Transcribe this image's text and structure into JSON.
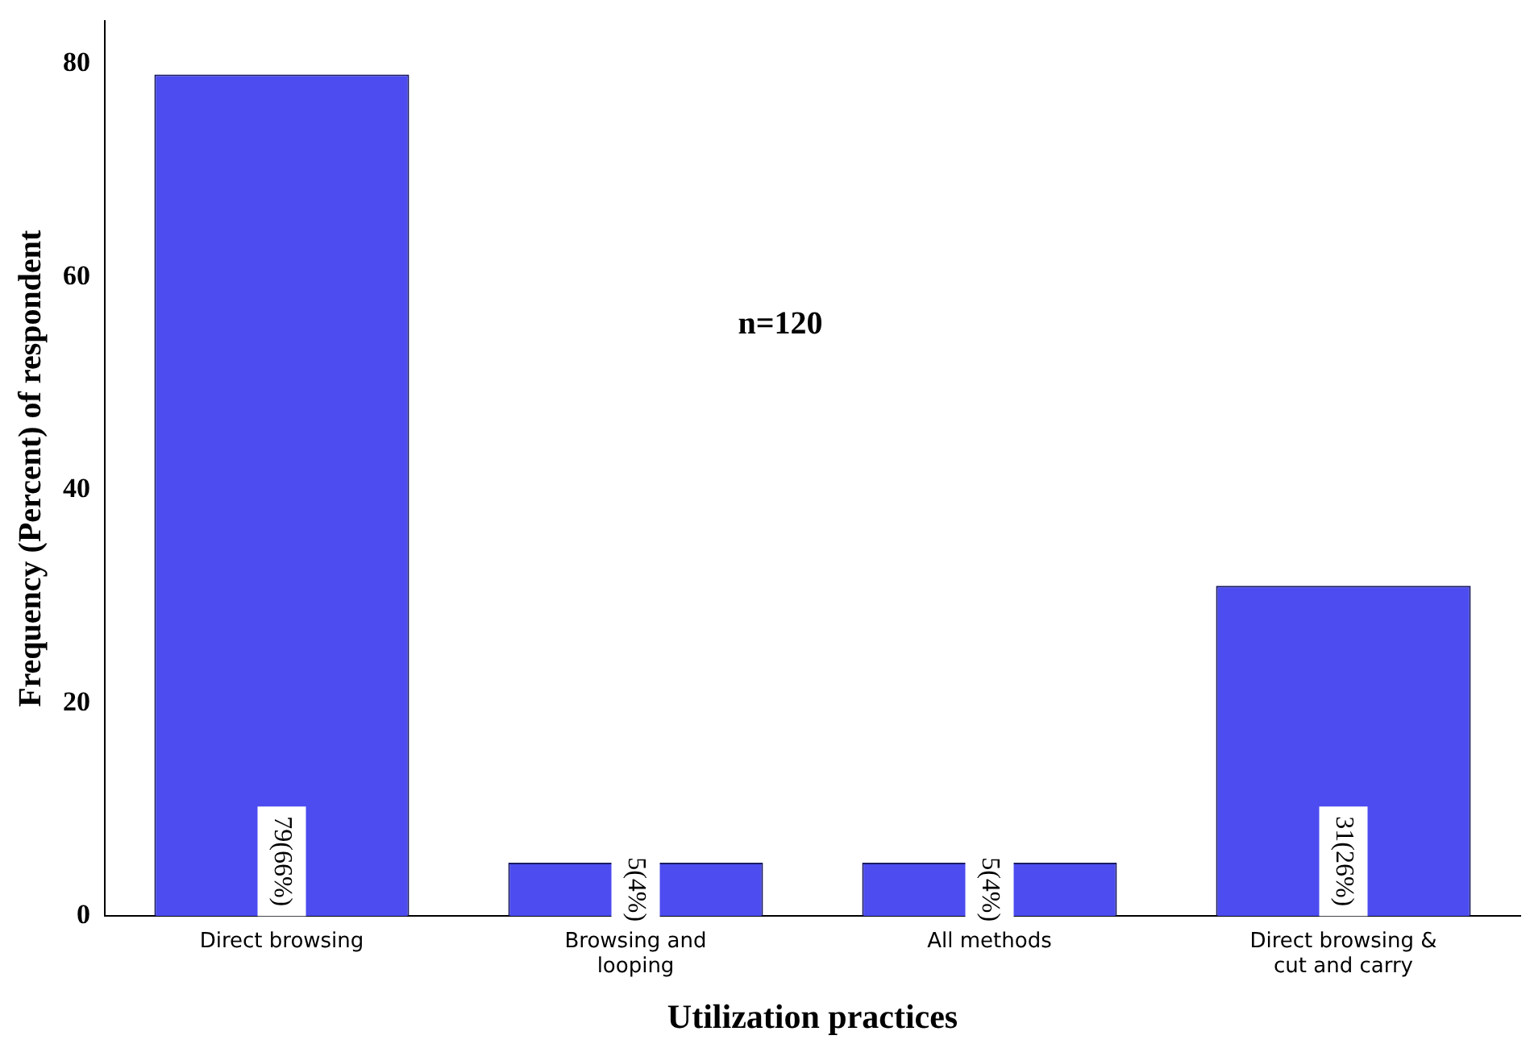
{
  "chart_data": {
    "type": "bar",
    "xlabel": "Utilization practices",
    "ylabel": "Frequency (Percent) of respondent",
    "categories": [
      "Direct browsing",
      "Browsing and looping",
      "All methods",
      "Direct browsing & cut and carry"
    ],
    "values": [
      79,
      5,
      5,
      31
    ],
    "color": "#4c4cf0",
    "value_labels": [
      "79(66%)",
      "5(4%)",
      "5(4%)",
      "31(26%)"
    ],
    "ylim": [
      0,
      84
    ],
    "yticks": [
      0,
      20,
      40,
      60,
      80
    ],
    "grid": false,
    "legend": false,
    "annotations": [
      "n=120"
    ]
  }
}
